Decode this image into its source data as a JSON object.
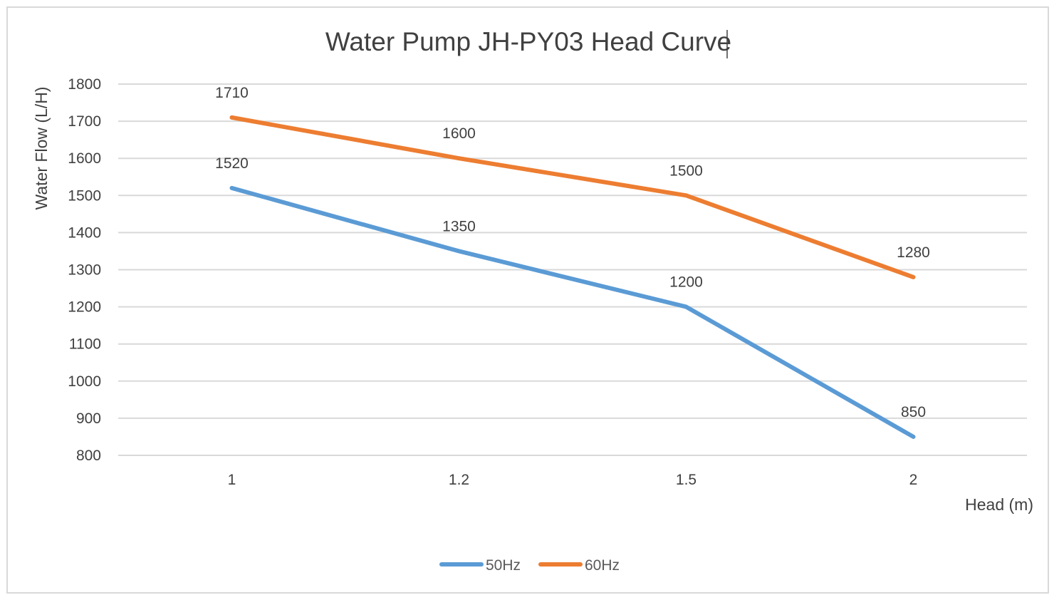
{
  "chart_data": {
    "type": "line",
    "title": "Water Pump JH-PY03  Head Curve",
    "xlabel": "Head (m)",
    "ylabel": "Water Flow (L/H)",
    "categories": [
      "1",
      "1.2",
      "1.5",
      "2"
    ],
    "ylim": [
      800,
      1800
    ],
    "yticks": [
      800,
      900,
      1000,
      1100,
      1200,
      1300,
      1400,
      1500,
      1600,
      1700,
      1800
    ],
    "grid": true,
    "legend_position": "bottom",
    "series": [
      {
        "name": "50Hz",
        "color": "#5b9bd5",
        "values": [
          1520,
          1350,
          1200,
          850
        ]
      },
      {
        "name": "60Hz",
        "color": "#ed7d31",
        "values": [
          1710,
          1600,
          1500,
          1280
        ]
      }
    ]
  }
}
